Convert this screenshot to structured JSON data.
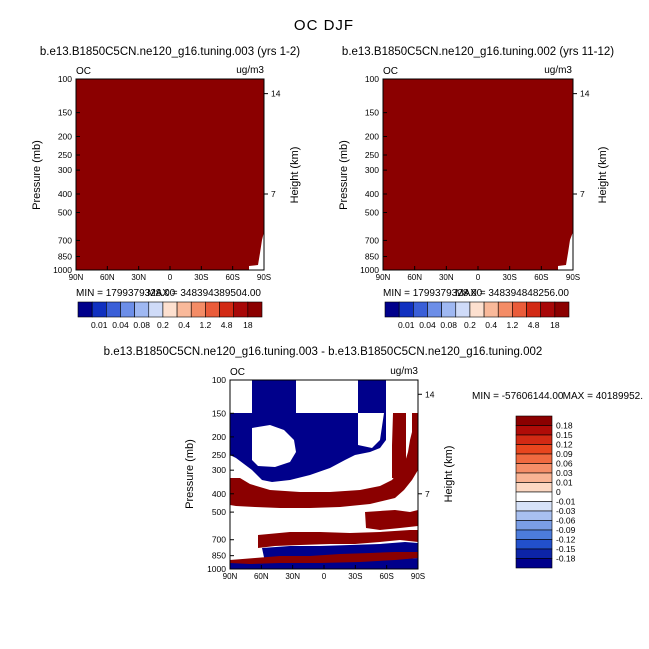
{
  "page_title": "OC DJF",
  "colors": {
    "dark_red": "#8b0000",
    "dark_blue": "#00008b"
  },
  "chart_data": [
    {
      "type": "heatmap",
      "id": "panel1",
      "title": "b.e13.B1850C5CN.ne120_g16.tuning.003 (yrs 1-2)",
      "corner_left": "OC",
      "corner_right": "ug/m3",
      "ylabel": "Pressure (mb)",
      "ylabel_right": "Height (km)",
      "xticks": [
        "90N",
        "60N",
        "30N",
        "0",
        "30S",
        "60S",
        "90S"
      ],
      "yticks": [
        "100",
        "150",
        "200",
        "250",
        "300",
        "400",
        "500",
        "700",
        "850",
        "1000"
      ],
      "ylim": [
        1000,
        100
      ],
      "height_ticks": [
        "14",
        "7"
      ],
      "min_text": "MIN = 1799379328.00",
      "max_text": "MAX = 348394389504.00",
      "colorbar": {
        "orientation": "horizontal",
        "labels": [
          "0.01",
          "0.04",
          "0.08",
          "0.2",
          "0.4",
          "1.2",
          "4.8",
          "18"
        ],
        "colors": [
          "#00008b",
          "#1030c0",
          "#3a5fd8",
          "#6c8ee8",
          "#9fb8f2",
          "#cfdbf8",
          "#fde0cf",
          "#f9b99a",
          "#f48c66",
          "#ea5c3a",
          "#d22a14",
          "#a80808",
          "#8b0000"
        ]
      }
    },
    {
      "type": "heatmap",
      "id": "panel2",
      "title": "b.e13.B1850C5CN.ne120_g16.tuning.002 (yrs 11-12)",
      "corner_left": "OC",
      "corner_right": "ug/m3",
      "ylabel": "Pressure (mb)",
      "ylabel_right": "Height (km)",
      "xticks": [
        "90N",
        "60N",
        "30N",
        "0",
        "30S",
        "60S",
        "90S"
      ],
      "yticks": [
        "100",
        "150",
        "200",
        "250",
        "300",
        "400",
        "500",
        "700",
        "850",
        "1000"
      ],
      "ylim": [
        1000,
        100
      ],
      "height_ticks": [
        "14",
        "7"
      ],
      "min_text": "MIN = 1799379328.00",
      "max_text": "MAX = 348394848256.00",
      "colorbar": {
        "orientation": "horizontal",
        "labels": [
          "0.01",
          "0.04",
          "0.08",
          "0.2",
          "0.4",
          "1.2",
          "4.8",
          "18"
        ],
        "colors": [
          "#00008b",
          "#1030c0",
          "#3a5fd8",
          "#6c8ee8",
          "#9fb8f2",
          "#cfdbf8",
          "#fde0cf",
          "#f9b99a",
          "#f48c66",
          "#ea5c3a",
          "#d22a14",
          "#a80808",
          "#8b0000"
        ]
      }
    },
    {
      "type": "heatmap",
      "id": "panel3",
      "title": "b.e13.B1850C5CN.ne120_g16.tuning.003 - b.e13.B1850C5CN.ne120_g16.tuning.002",
      "corner_left": "OC",
      "corner_right": "ug/m3",
      "ylabel": "Pressure (mb)",
      "ylabel_right": "Height (km)",
      "xticks": [
        "90N",
        "60N",
        "30N",
        "0",
        "30S",
        "60S",
        "90S"
      ],
      "yticks": [
        "100",
        "150",
        "200",
        "250",
        "300",
        "400",
        "500",
        "700",
        "850",
        "1000"
      ],
      "ylim": [
        1000,
        100
      ],
      "height_ticks": [
        "14",
        "7"
      ],
      "min_text": "MIN = -57606144.00",
      "max_text": "MAX = 40189952.",
      "colorbar": {
        "orientation": "vertical",
        "labels": [
          "0.18",
          "0.15",
          "0.12",
          "0.09",
          "0.06",
          "0.03",
          "0.01",
          "0",
          "-0.01",
          "-0.03",
          "-0.06",
          "-0.09",
          "-0.12",
          "-0.15",
          "-0.18"
        ],
        "colors": [
          "#8b0000",
          "#b00c08",
          "#d22a14",
          "#e8461e",
          "#f06a40",
          "#f58e68",
          "#f9b393",
          "#fcd8c3",
          "#ffffff",
          "#d6e2f8",
          "#a8c0f0",
          "#7a9ee6",
          "#4c7cdc",
          "#2250cc",
          "#0c24a8",
          "#00008b"
        ]
      }
    }
  ]
}
